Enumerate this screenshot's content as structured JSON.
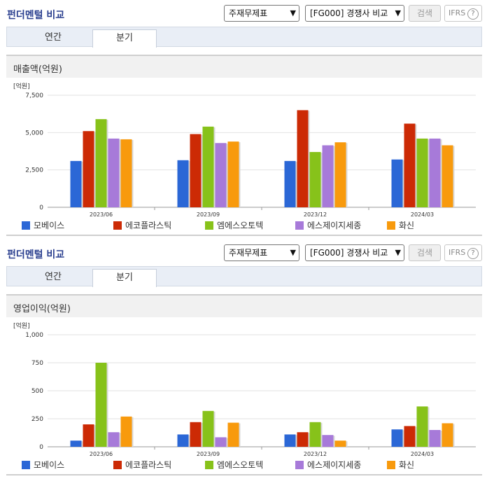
{
  "panels": [
    {
      "title": "펀더멘털 비교",
      "select_statement": "주재무제표",
      "select_compare": "[FG000] 경쟁사 비교",
      "search_label": "검색",
      "ifrs_label": "IFRS",
      "help_label": "?",
      "tabs": [
        {
          "label": "연간"
        },
        {
          "label": "분기"
        }
      ],
      "active_tab": 1
    },
    {
      "title": "펀더멘털 비교",
      "select_statement": "주재무제표",
      "select_compare": "[FG000] 경쟁사 비교",
      "search_label": "검색",
      "ifrs_label": "IFRS",
      "help_label": "?",
      "tabs": [
        {
          "label": "연간"
        },
        {
          "label": "분기"
        }
      ],
      "active_tab": 1
    }
  ],
  "chart_data": [
    {
      "type": "bar",
      "title": "매출액(억원)",
      "ylabel": "[억원]",
      "ylim": [
        0,
        7500
      ],
      "yticks": [
        0,
        2500,
        5000,
        7500
      ],
      "ytick_labels": [
        "0",
        "2,500",
        "5,000",
        "7,500"
      ],
      "categories": [
        "2023/06",
        "2023/09",
        "2023/12",
        "2024/03"
      ],
      "series": [
        {
          "name": "모베이스",
          "color": "#2b67d6",
          "values": [
            3100,
            3150,
            3100,
            3200
          ]
        },
        {
          "name": "에코플라스틱",
          "color": "#cc2a05",
          "values": [
            5100,
            4900,
            6500,
            5600
          ]
        },
        {
          "name": "엠에스오토텍",
          "color": "#87c21a",
          "values": [
            5900,
            5400,
            3700,
            4600
          ]
        },
        {
          "name": "에스제이지세종",
          "color": "#a77ad9",
          "values": [
            4600,
            4300,
            4150,
            4600
          ]
        },
        {
          "name": "화신",
          "color": "#f89a0d",
          "values": [
            4550,
            4400,
            4350,
            4150
          ]
        }
      ],
      "grid": true,
      "legend_position": "bottom"
    },
    {
      "type": "bar",
      "title": "영업이익(억원)",
      "ylabel": "[억원]",
      "ylim": [
        0,
        1000
      ],
      "yticks": [
        0,
        250,
        500,
        750,
        1000
      ],
      "ytick_labels": [
        "0",
        "250",
        "500",
        "750",
        "1,000"
      ],
      "categories": [
        "2023/06",
        "2023/09",
        "2023/12",
        "2024/03"
      ],
      "series": [
        {
          "name": "모베이스",
          "color": "#2b67d6",
          "values": [
            55,
            110,
            110,
            155
          ]
        },
        {
          "name": "에코플라스틱",
          "color": "#cc2a05",
          "values": [
            200,
            220,
            130,
            185
          ]
        },
        {
          "name": "엠에스오토텍",
          "color": "#87c21a",
          "values": [
            750,
            320,
            220,
            360
          ]
        },
        {
          "name": "에스제이지세종",
          "color": "#a77ad9",
          "values": [
            130,
            85,
            105,
            150
          ]
        },
        {
          "name": "화신",
          "color": "#f89a0d",
          "values": [
            270,
            215,
            55,
            210
          ]
        }
      ],
      "grid": true,
      "legend_position": "bottom"
    }
  ]
}
